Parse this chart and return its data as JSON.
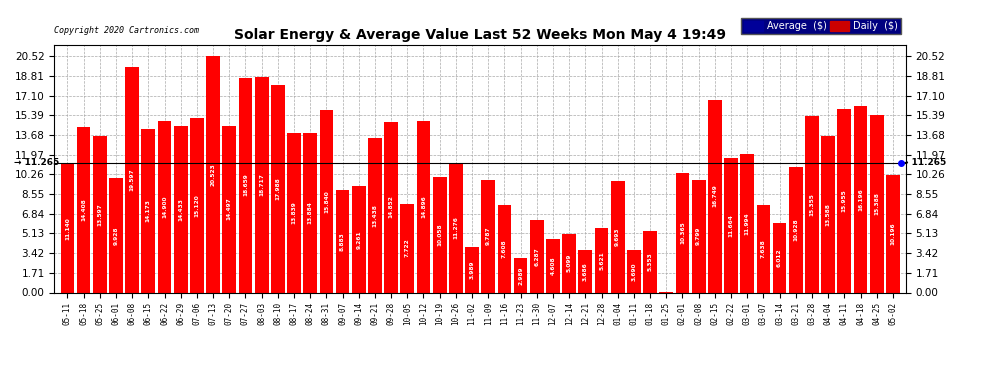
{
  "title": "Solar Energy & Average Value Last 52 Weeks Mon May 4 19:49",
  "copyright": "Copyright 2020 Cartronics.com",
  "average_line": 11.265,
  "average_label": "11.265",
  "bar_color": "#FF0000",
  "average_line_color": "#000000",
  "background_color": "#FFFFFF",
  "plot_bg_color": "#FFFFFF",
  "grid_color": "#AAAAAA",
  "yticks": [
    0.0,
    1.71,
    3.42,
    5.13,
    6.84,
    8.55,
    10.26,
    11.97,
    13.68,
    15.39,
    17.1,
    18.81,
    20.52
  ],
  "legend_avg_color": "#000099",
  "legend_daily_color": "#CC0000",
  "categories": [
    "05-11",
    "05-18",
    "05-25",
    "06-01",
    "06-08",
    "06-15",
    "06-22",
    "06-29",
    "07-06",
    "07-13",
    "07-20",
    "07-27",
    "08-03",
    "08-10",
    "08-17",
    "08-24",
    "08-31",
    "09-07",
    "09-14",
    "09-21",
    "09-28",
    "10-05",
    "10-12",
    "10-19",
    "10-26",
    "11-02",
    "11-09",
    "11-16",
    "11-23",
    "11-30",
    "12-07",
    "12-14",
    "12-21",
    "12-28",
    "01-04",
    "01-11",
    "01-18",
    "01-25",
    "02-01",
    "02-08",
    "02-15",
    "02-22",
    "03-01",
    "03-07",
    "03-14",
    "03-21",
    "03-28",
    "04-04",
    "04-11",
    "04-18",
    "04-25",
    "05-02"
  ],
  "values": [
    11.14,
    14.408,
    13.597,
    9.928,
    19.597,
    14.173,
    14.9,
    14.433,
    15.12,
    20.523,
    14.497,
    18.659,
    18.717,
    17.988,
    13.839,
    13.884,
    15.84,
    8.883,
    9.261,
    13.438,
    14.852,
    7.722,
    14.896,
    10.058,
    11.276,
    3.989,
    9.787,
    7.608,
    2.989,
    6.287,
    4.608,
    5.099,
    3.686,
    5.621,
    9.693,
    3.69,
    5.353,
    0.008,
    10.365,
    9.799,
    16.749,
    11.664,
    11.994,
    7.638,
    6.012,
    10.928,
    15.355,
    13.588,
    15.955,
    16.196,
    15.388,
    10.196
  ]
}
